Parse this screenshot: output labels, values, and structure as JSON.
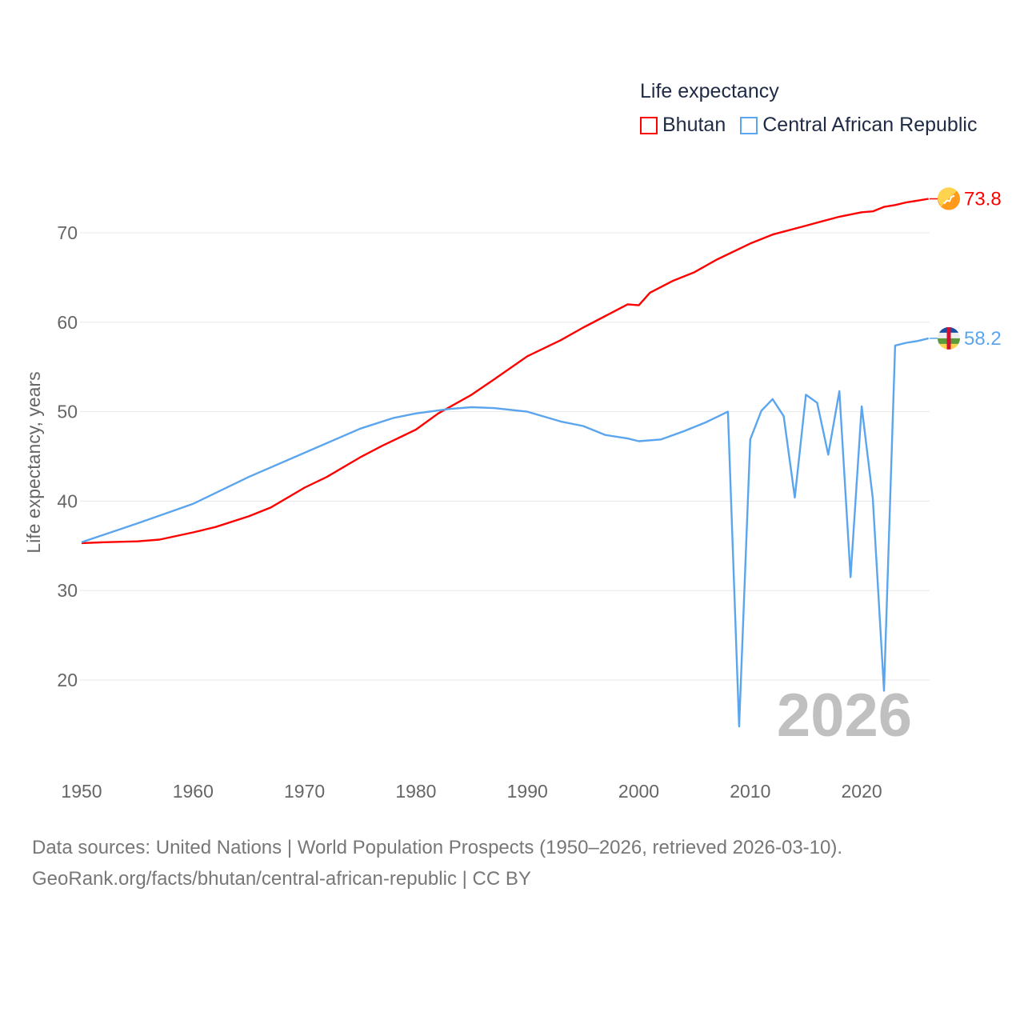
{
  "chart_data": {
    "type": "line",
    "title": "Life expectancy",
    "ylabel": "Life expectancy, years",
    "xlabel": "",
    "xlim": [
      1950,
      2026
    ],
    "ylim": [
      10,
      80
    ],
    "x_ticks": [
      1950,
      1960,
      1970,
      1980,
      1990,
      2000,
      2010,
      2020
    ],
    "y_ticks": [
      20,
      30,
      40,
      50,
      60,
      70
    ],
    "grid": true,
    "legend_position": "top-right",
    "year_label": "2026",
    "series": [
      {
        "name": "Bhutan",
        "color": "#ff0000",
        "end_label": "73.8",
        "flag": "bhutan-flag",
        "x": [
          1950,
          1952,
          1955,
          1957,
          1960,
          1962,
          1965,
          1967,
          1970,
          1972,
          1975,
          1977,
          1980,
          1982,
          1985,
          1987,
          1990,
          1993,
          1995,
          1997,
          1999,
          2000,
          2001,
          2003,
          2005,
          2007,
          2010,
          2012,
          2015,
          2018,
          2020,
          2021,
          2022,
          2023,
          2024,
          2025,
          2026
        ],
        "y": [
          35.3,
          35.4,
          35.5,
          35.7,
          36.5,
          37.1,
          38.3,
          39.3,
          41.5,
          42.7,
          44.9,
          46.2,
          48.0,
          49.8,
          51.9,
          53.6,
          56.2,
          58.0,
          59.4,
          60.7,
          62.0,
          61.9,
          63.3,
          64.6,
          65.6,
          67.0,
          68.8,
          69.8,
          70.8,
          71.8,
          72.3,
          72.4,
          72.9,
          73.1,
          73.4,
          73.6,
          73.8
        ]
      },
      {
        "name": "Central African Republic",
        "color": "#5aa5ee",
        "end_label": "58.2",
        "flag": "central-african-republic-flag",
        "x": [
          1950,
          1955,
          1960,
          1965,
          1970,
          1975,
          1978,
          1980,
          1983,
          1985,
          1987,
          1990,
          1993,
          1995,
          1997,
          1999,
          2000,
          2002,
          2004,
          2006,
          2008,
          2009,
          2010,
          2011,
          2012,
          2013,
          2014,
          2015,
          2016,
          2017,
          2018,
          2019,
          2020,
          2021,
          2022,
          2023,
          2024,
          2025,
          2026
        ],
        "y": [
          35.4,
          37.5,
          39.7,
          42.7,
          45.4,
          48.1,
          49.3,
          49.8,
          50.3,
          50.5,
          50.4,
          50.0,
          48.9,
          48.4,
          47.4,
          47.0,
          46.7,
          46.9,
          47.8,
          48.8,
          50.0,
          14.8,
          46.9,
          50.1,
          51.4,
          49.5,
          40.4,
          51.9,
          51.0,
          45.2,
          52.3,
          31.5,
          50.6,
          40.3,
          18.8,
          57.4,
          57.7,
          57.9,
          58.2
        ]
      }
    ]
  },
  "footer": {
    "line1": "Data sources: United Nations | World Population Prospects (1950–2026, retrieved 2026-03-10).",
    "line2": "GeoRank.org/facts/bhutan/central-african-republic | CC BY"
  }
}
